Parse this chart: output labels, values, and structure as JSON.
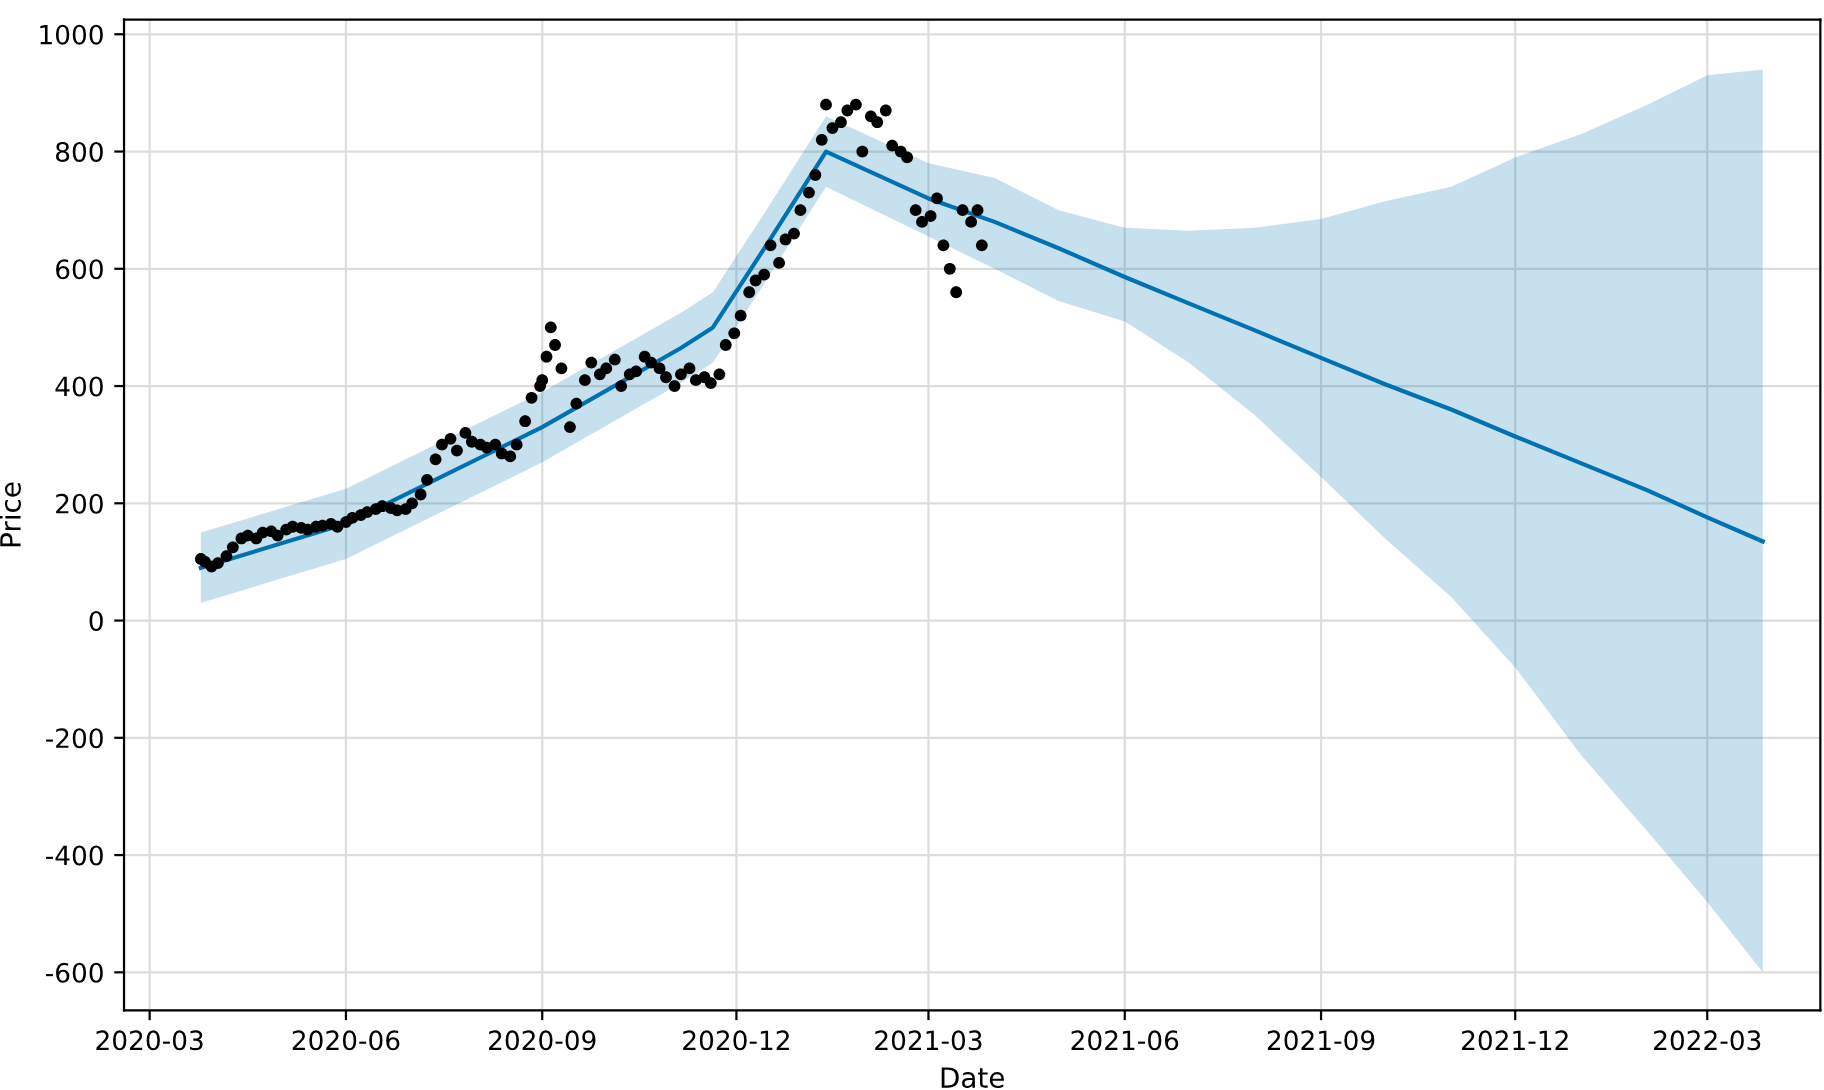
{
  "chart_data": {
    "type": "line",
    "xlabel": "Date",
    "ylabel": "Price",
    "grid": true,
    "xlim": [
      "2020-02-18",
      "2022-04-23"
    ],
    "ylim": [
      -665,
      1025
    ],
    "xticks": [
      {
        "value": "2020-03-01",
        "label": "2020-03"
      },
      {
        "value": "2020-06-01",
        "label": "2020-06"
      },
      {
        "value": "2020-09-01",
        "label": "2020-09"
      },
      {
        "value": "2020-12-01",
        "label": "2020-12"
      },
      {
        "value": "2021-03-01",
        "label": "2021-03"
      },
      {
        "value": "2021-06-01",
        "label": "2021-06"
      },
      {
        "value": "2021-09-01",
        "label": "2021-09"
      },
      {
        "value": "2021-12-01",
        "label": "2021-12"
      },
      {
        "value": "2022-03-01",
        "label": "2022-03"
      }
    ],
    "yticks": [
      -600,
      -400,
      -200,
      0,
      200,
      400,
      600,
      800,
      1000
    ],
    "series": [
      {
        "color": "#0072b2",
        "x": [
          "2020-03-25",
          "2020-06-01",
          "2020-09-01",
          "2020-11-05",
          "2020-11-20",
          "2020-12-15",
          "2021-01-12",
          "2021-03-01",
          "2021-04-01",
          "2021-05-01",
          "2021-06-01",
          "2021-07-01",
          "2021-08-01",
          "2021-09-01",
          "2021-10-01",
          "2021-11-01",
          "2021-12-01",
          "2022-01-01",
          "2022-02-01",
          "2022-03-01",
          "2022-03-27"
        ],
        "values": [
          90,
          165,
          330,
          465,
          500,
          640,
          800,
          720,
          680,
          635,
          586,
          541,
          495,
          448,
          403,
          360,
          314,
          268,
          222,
          176,
          135
        ],
        "lower": [
          30,
          105,
          270,
          405,
          440,
          580,
          740,
          655,
          600,
          545,
          510,
          440,
          350,
          245,
          140,
          40,
          -80,
          -230,
          -360,
          -480,
          -600
        ],
        "upper": [
          150,
          225,
          390,
          525,
          560,
          700,
          860,
          780,
          755,
          700,
          670,
          665,
          670,
          685,
          715,
          740,
          790,
          830,
          880,
          930,
          940
        ]
      },
      {
        "type": "scatter",
        "color": "#000000",
        "marker": "circle",
        "x": [
          "2020-03-25",
          "2020-03-27",
          "2020-03-30",
          "2020-04-02",
          "2020-04-06",
          "2020-04-09",
          "2020-04-13",
          "2020-04-16",
          "2020-04-20",
          "2020-04-23",
          "2020-04-27",
          "2020-04-30",
          "2020-05-04",
          "2020-05-07",
          "2020-05-11",
          "2020-05-14",
          "2020-05-18",
          "2020-05-21",
          "2020-05-25",
          "2020-05-28",
          "2020-06-01",
          "2020-06-04",
          "2020-06-08",
          "2020-06-11",
          "2020-06-15",
          "2020-06-18",
          "2020-06-22",
          "2020-06-25",
          "2020-06-29",
          "2020-07-02",
          "2020-07-06",
          "2020-07-09",
          "2020-07-13",
          "2020-07-16",
          "2020-07-20",
          "2020-07-23",
          "2020-07-27",
          "2020-07-30",
          "2020-08-03",
          "2020-08-06",
          "2020-08-10",
          "2020-08-13",
          "2020-08-17",
          "2020-08-20",
          "2020-08-24",
          "2020-08-27",
          "2020-08-31",
          "2020-09-01",
          "2020-09-03",
          "2020-09-05",
          "2020-09-07",
          "2020-09-10",
          "2020-09-14",
          "2020-09-17",
          "2020-09-21",
          "2020-09-24",
          "2020-09-28",
          "2020-10-01",
          "2020-10-05",
          "2020-10-08",
          "2020-10-12",
          "2020-10-15",
          "2020-10-19",
          "2020-10-22",
          "2020-10-26",
          "2020-10-29",
          "2020-11-02",
          "2020-11-05",
          "2020-11-09",
          "2020-11-12",
          "2020-11-16",
          "2020-11-19",
          "2020-11-23",
          "2020-11-26",
          "2020-11-30",
          "2020-12-03",
          "2020-12-07",
          "2020-12-10",
          "2020-12-14",
          "2020-12-17",
          "2020-12-21",
          "2020-12-24",
          "2020-12-28",
          "2020-12-31",
          "2021-01-04",
          "2021-01-07",
          "2021-01-10",
          "2021-01-12",
          "2021-01-15",
          "2021-01-19",
          "2021-01-22",
          "2021-01-26",
          "2021-01-29",
          "2021-02-02",
          "2021-02-05",
          "2021-02-09",
          "2021-02-12",
          "2021-02-16",
          "2021-02-19",
          "2021-02-23",
          "2021-02-26",
          "2021-03-02",
          "2021-03-05",
          "2021-03-08",
          "2021-03-11",
          "2021-03-14",
          "2021-03-17",
          "2021-03-21",
          "2021-03-24",
          "2021-03-26"
        ],
        "values": [
          105,
          100,
          92,
          98,
          110,
          125,
          140,
          145,
          140,
          150,
          152,
          145,
          155,
          160,
          158,
          155,
          160,
          162,
          165,
          160,
          168,
          175,
          180,
          185,
          190,
          195,
          192,
          188,
          190,
          200,
          215,
          240,
          275,
          300,
          310,
          290,
          320,
          305,
          300,
          295,
          300,
          285,
          280,
          300,
          340,
          380,
          400,
          410,
          450,
          500,
          470,
          430,
          330,
          370,
          410,
          440,
          420,
          430,
          445,
          400,
          420,
          425,
          450,
          440,
          430,
          415,
          400,
          420,
          430,
          410,
          415,
          405,
          420,
          470,
          490,
          520,
          560,
          580,
          590,
          640,
          610,
          650,
          660,
          700,
          730,
          760,
          820,
          880,
          840,
          850,
          870,
          880,
          800,
          860,
          850,
          870,
          810,
          800,
          790,
          700,
          680,
          690,
          720,
          640,
          600,
          560,
          700,
          680,
          700,
          640
        ]
      }
    ]
  }
}
